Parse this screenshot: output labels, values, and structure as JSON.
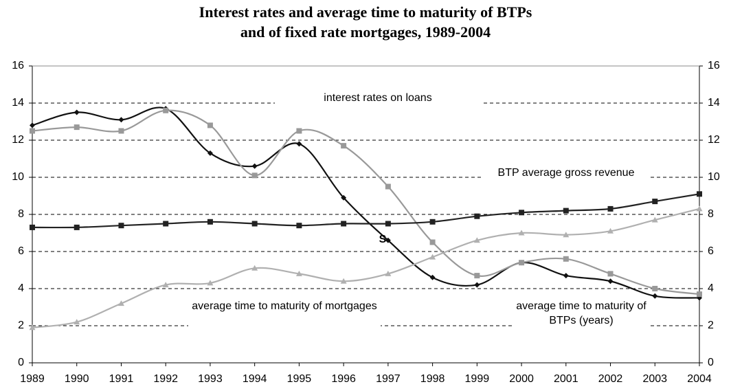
{
  "chart_data": {
    "type": "line",
    "title": [
      "Interest rates and average time to maturity of BTPs",
      "and of fixed rate mortgages, 1989-2004"
    ],
    "categories": [
      "1989",
      "1990",
      "1991",
      "1992",
      "1993",
      "1994",
      "1995",
      "1996",
      "1997",
      "1998",
      "1999",
      "2000",
      "2001",
      "2002",
      "2003",
      "2004"
    ],
    "series": [
      {
        "name": "interest rates on loans",
        "color": "#111111",
        "marker": "diamond",
        "values": [
          12.8,
          13.5,
          13.1,
          13.7,
          11.3,
          10.6,
          11.8,
          8.9,
          6.6,
          4.6,
          4.2,
          5.4,
          4.7,
          4.4,
          3.6,
          3.5
        ]
      },
      {
        "name": "BTP average gross revenue",
        "color": "#999999",
        "marker": "square",
        "values": [
          12.5,
          12.7,
          12.5,
          13.6,
          12.8,
          10.1,
          12.5,
          11.7,
          9.5,
          6.5,
          4.7,
          5.4,
          5.6,
          4.8,
          4.0,
          3.7
        ]
      },
      {
        "name": "average time to maturity of mortgages",
        "color": "#222222",
        "marker": "square",
        "values": [
          7.3,
          7.3,
          7.4,
          7.5,
          7.6,
          7.5,
          7.4,
          7.5,
          7.5,
          7.6,
          7.9,
          8.1,
          8.2,
          8.3,
          8.7,
          9.1
        ]
      },
      {
        "name": "average time to maturity of BTPs (years)",
        "color": "#b0b0b0",
        "marker": "triangle",
        "values": [
          1.9,
          2.2,
          3.2,
          4.2,
          4.3,
          5.1,
          4.8,
          4.4,
          4.8,
          5.7,
          6.6,
          7.0,
          6.9,
          7.1,
          7.7,
          8.3
        ]
      }
    ],
    "annotations": [
      "S"
    ],
    "ylim": [
      0,
      16
    ],
    "yticks": [
      0,
      2,
      4,
      6,
      8,
      10,
      12,
      14,
      16
    ],
    "y2lim": [
      0,
      16
    ],
    "y2ticks": [
      0,
      2,
      4,
      6,
      8,
      10,
      12,
      14,
      16
    ],
    "grid": true
  }
}
